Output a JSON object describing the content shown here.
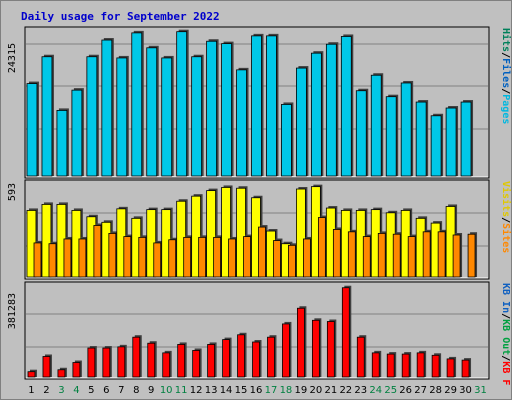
{
  "chart_data": {
    "type": "bar",
    "title": "Daily usage for September 2022",
    "colors": {
      "background": "#c0c0c0",
      "plot": "#bfbfbf",
      "title": "#0000cc",
      "hits": "#00c8e8",
      "files": "#00b0d8",
      "pages": "#00a8c8",
      "visits": "#ffff00",
      "sites": "#ff8800",
      "kbin": "#ff0000",
      "kbout": "#cc0000",
      "weekday": "#000000",
      "weekend": "#008040"
    },
    "categories": [
      "1",
      "2",
      "3",
      "4",
      "5",
      "6",
      "7",
      "8",
      "9",
      "10",
      "11",
      "12",
      "13",
      "14",
      "15",
      "16",
      "17",
      "18",
      "19",
      "20",
      "21",
      "22",
      "23",
      "24",
      "25",
      "26",
      "27",
      "28",
      "29",
      "30",
      "31"
    ],
    "weekend_days": [
      "3",
      "4",
      "10",
      "11",
      "17",
      "18",
      "24",
      "25",
      "31"
    ],
    "panels": [
      {
        "name": "hits",
        "max_label": "24315",
        "ylim": [
          0,
          24315
        ],
        "legend": [
          {
            "label": "Hits",
            "color": "#00805a"
          },
          {
            "label": "/",
            "color": "#000000"
          },
          {
            "label": "Files",
            "color": "#0060c0"
          },
          {
            "label": "/",
            "color": "#000000"
          },
          {
            "label": "Pages",
            "color": "#00b8e0"
          }
        ],
        "series": [
          {
            "name": "Hits",
            "values": [
              15500,
              20000,
              11000,
              14400,
              20000,
              22800,
              19800,
              24000,
              21500,
              19800,
              24200,
              20000,
              22600,
              22200,
              17800,
              23500,
              23500,
              12000,
              18100,
              20600,
              22100,
              23400,
              14300,
              16900,
              13300,
              15600,
              12400,
              10100,
              11400,
              12400,
              0
            ]
          }
        ]
      },
      {
        "name": "visits",
        "max_label": "593",
        "ylim": [
          0,
          593
        ],
        "legend": [
          {
            "label": "Visits",
            "color": "#e0c800"
          },
          {
            "label": "/",
            "color": "#000000"
          },
          {
            "label": "Sites",
            "color": "#ff8800"
          }
        ],
        "series": [
          {
            "name": "Visits",
            "values": [
              420,
              458,
              458,
              420,
              380,
              345,
              430,
              370,
              425,
              425,
              478,
              510,
              545,
              565,
              560,
              500,
              290,
              210,
              555,
              570,
              435,
              420,
              420,
              425,
              405,
              420,
              370,
              340,
              445,
              0,
              0
            ]
          },
          {
            "name": "Sites",
            "values": [
              215,
              210,
              240,
              240,
              325,
              275,
              255,
              250,
              215,
              235,
              250,
              250,
              250,
              240,
              255,
              315,
              230,
              200,
              240,
              375,
              300,
              285,
              255,
              275,
              270,
              255,
              285,
              285,
              265,
              270,
              0
            ]
          }
        ]
      },
      {
        "name": "kb",
        "max_label": "381283",
        "ylim": [
          0,
          381283
        ],
        "legend": [
          {
            "label": "KB In",
            "color": "#1060c0"
          },
          {
            "label": "/",
            "color": "#000000"
          },
          {
            "label": "KB Out",
            "color": "#00a040"
          },
          {
            "label": "/",
            "color": "#000000"
          },
          {
            "label": "KB F",
            "color": "#ff0000"
          }
        ],
        "series": [
          {
            "name": "KB F",
            "values": [
              22000,
              85000,
              30000,
              60000,
              120000,
              120000,
              125000,
              165000,
              140000,
              100000,
              135000,
              110000,
              135000,
              155000,
              175000,
              145000,
              165000,
              220000,
              285000,
              235000,
              230000,
              370000,
              165000,
              100000,
              95000,
              95000,
              100000,
              90000,
              75000,
              70000,
              0
            ]
          }
        ]
      }
    ]
  }
}
